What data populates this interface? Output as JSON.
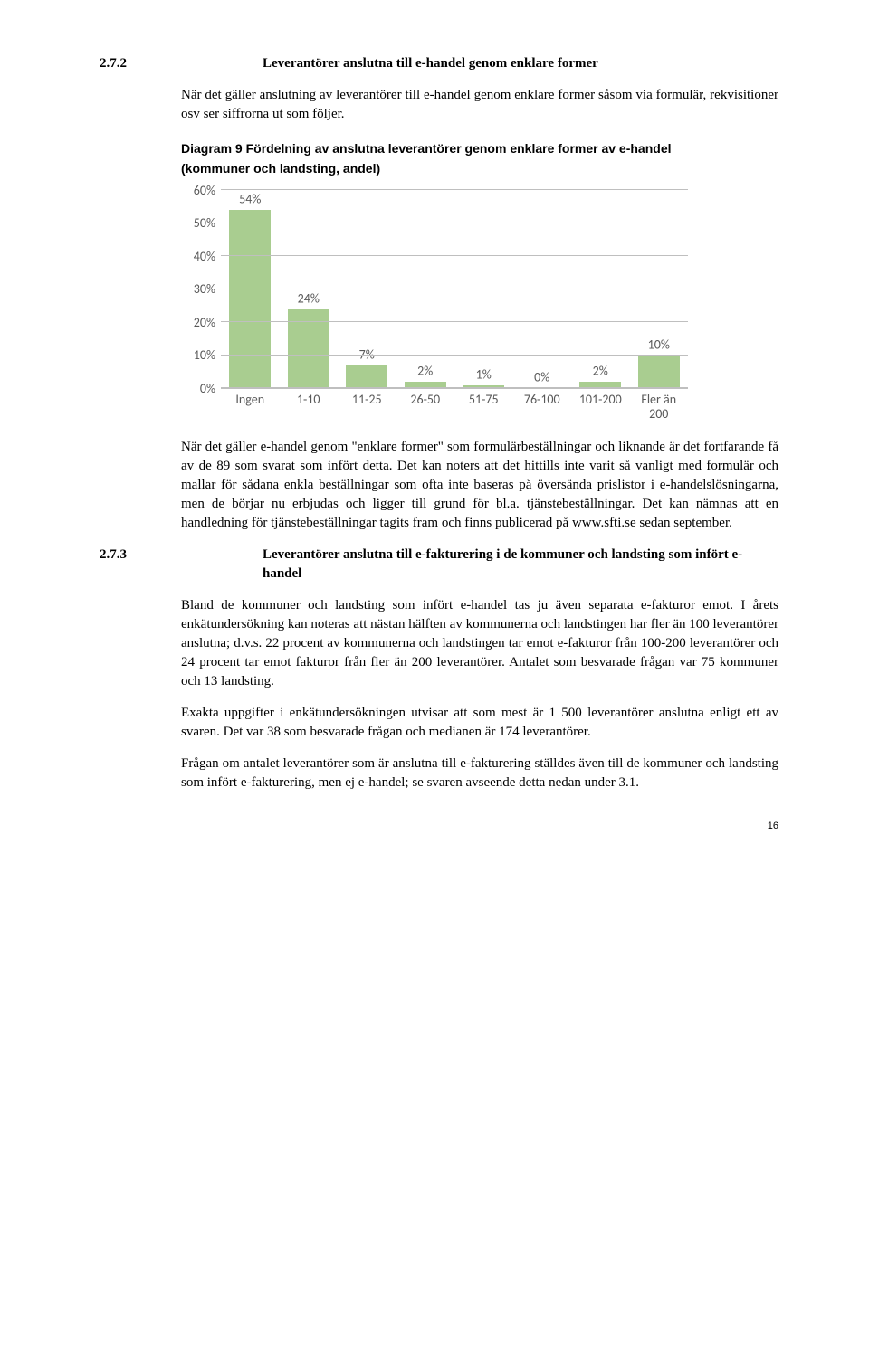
{
  "sec272": {
    "num": "2.7.2",
    "title": "Leverantörer anslutna till e-handel genom enklare former",
    "p1": "När det gäller anslutning av leverantörer till e-handel genom enklare former såsom via formulär, rekvisitioner osv ser siffrorna ut som följer."
  },
  "chart": {
    "title": "Diagram 9 Fördelning av anslutna leverantörer genom enklare former av e-handel",
    "subtitle": "(kommuner och landsting, andel)",
    "categories": [
      "Ingen",
      "1-10",
      "11-25",
      "26-50",
      "51-75",
      "76-100",
      "101-200",
      "Fler än 200"
    ],
    "values": [
      54,
      24,
      7,
      2,
      1,
      0,
      2,
      10
    ],
    "labels": [
      "54%",
      "24%",
      "7%",
      "2%",
      "1%",
      "0%",
      "2%",
      "10%"
    ],
    "ylim_max": 60,
    "ytick_step": 10,
    "yticks": [
      "0%",
      "10%",
      "20%",
      "30%",
      "40%",
      "50%",
      "60%"
    ],
    "bar_color": "#a9cd90",
    "grid_color": "#bfbfbf",
    "tick_text_color": "#595959",
    "background": "#ffffff"
  },
  "after_chart": {
    "p1": "När det gäller e-handel genom \"enklare former\" som formulärbeställningar och liknande är det fortfarande få av de 89 som svarat som infört detta. Det kan noters att det hittills inte varit så vanligt med formulär och mallar för sådana enkla beställningar som ofta inte baseras på översända prislistor i e-handelslösningarna, men de börjar nu erbjudas och ligger till grund för bl.a. tjänstebeställningar. Det kan nämnas att en handledning för tjänstebeställningar tagits fram och finns publicerad på www.sfti.se sedan september."
  },
  "sec273": {
    "num": "2.7.3",
    "title": "Leverantörer anslutna till e-fakturering i de kommuner och landsting som infört e-handel",
    "p1": "Bland de kommuner och landsting som infört e-handel tas ju även separata e-fakturor emot. I årets enkätundersökning kan noteras att nästan hälften av kommunerna och landstingen har fler än 100 leverantörer anslutna; d.v.s. 22 procent av kommunerna och landstingen tar emot e-fakturor från 100-200 leverantörer och 24 procent tar emot fakturor från fler än 200 leverantörer. Antalet som besvarade frågan var 75 kommuner och 13 landsting.",
    "p2": "Exakta uppgifter i enkätundersökningen utvisar att som mest är 1 500 leverantörer anslutna enligt ett av svaren. Det var 38 som besvarade frågan och medianen är 174 leverantörer.",
    "p3": "Frågan om antalet leverantörer som är anslutna till e-fakturering ställdes även till de kommuner och landsting som infört e-fakturering, men ej e-handel; se svaren avseende detta nedan under 3.1."
  },
  "page_number": "16"
}
